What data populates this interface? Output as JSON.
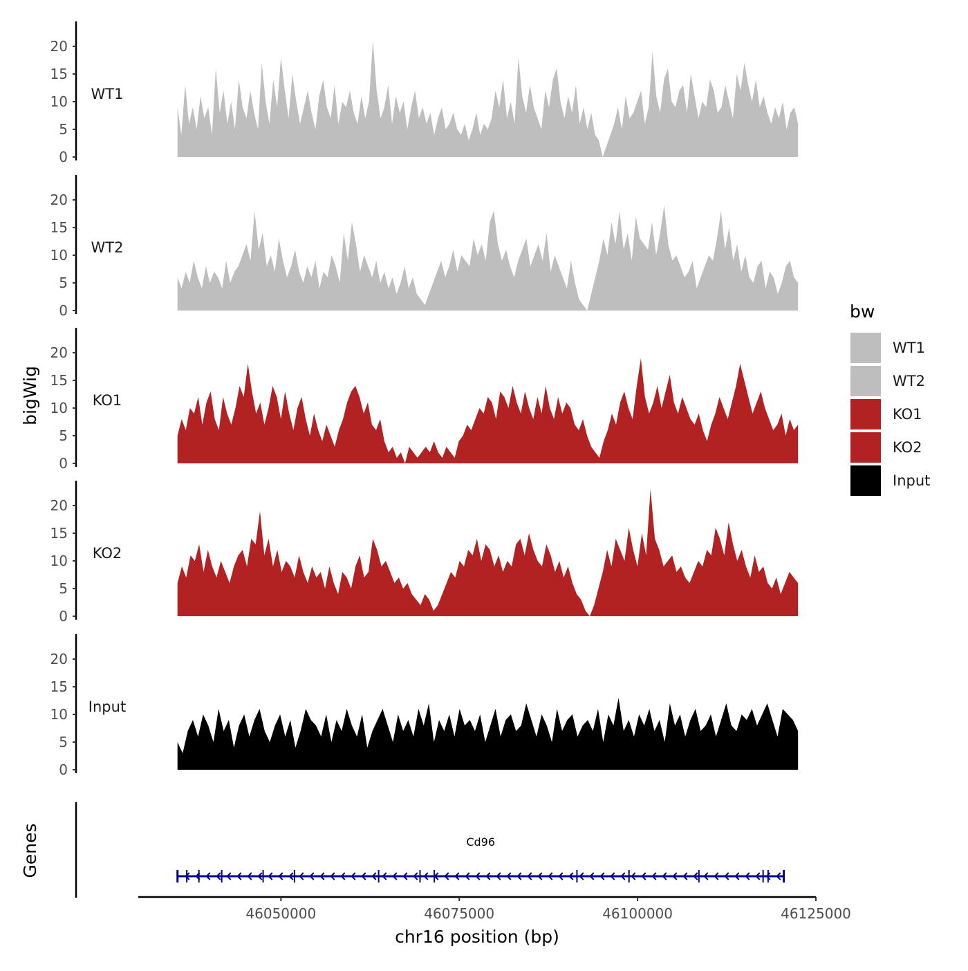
{
  "chart_data": {
    "type": "area",
    "title": "",
    "ylabel": "bigWig",
    "xlabel": "chr16 position (bp)",
    "genes_label": "Genes",
    "ylim": [
      0,
      24
    ],
    "xlim": [
      46030000,
      46125000
    ],
    "x_range": [
      46035500,
      46122500
    ],
    "y_ticks": [
      "0",
      "5",
      "10",
      "15",
      "20"
    ],
    "x_ticks": [
      {
        "value": 46050000,
        "label": "46050000"
      },
      {
        "value": 46075000,
        "label": "46075000"
      },
      {
        "value": 46100000,
        "label": "46100000"
      },
      {
        "value": 46125000,
        "label": "46125000"
      }
    ],
    "legend": {
      "title": "bw",
      "entries": [
        {
          "label": "WT1",
          "color": "#bebebe"
        },
        {
          "label": "WT2",
          "color": "#bebebe"
        },
        {
          "label": "KO1",
          "color": "#b22222"
        },
        {
          "label": "KO2",
          "color": "#b22222"
        },
        {
          "label": "Input",
          "color": "#000000"
        }
      ]
    },
    "series": [
      {
        "name": "WT1",
        "color": "#bebebe",
        "values": [
          9,
          4,
          13,
          6,
          9,
          5,
          11,
          7,
          9,
          4,
          16,
          8,
          12,
          6,
          10,
          5,
          14,
          9,
          7,
          12,
          8,
          5,
          17,
          10,
          6,
          14,
          9,
          18,
          12,
          7,
          15,
          10,
          6,
          9,
          12,
          8,
          5,
          11,
          14,
          9,
          7,
          13,
          6,
          10,
          9,
          12,
          8,
          6,
          11,
          7,
          10,
          21,
          12,
          7,
          9,
          13,
          6,
          11,
          8,
          10,
          5,
          9,
          12,
          7,
          9,
          6,
          8,
          4,
          7,
          9,
          5,
          6,
          8,
          5,
          4,
          6,
          3,
          5,
          8,
          4,
          6,
          5,
          7,
          12,
          9,
          14,
          7,
          10,
          6,
          18,
          11,
          8,
          13,
          9,
          7,
          5,
          12,
          9,
          14,
          16,
          10,
          7,
          11,
          8,
          13,
          6,
          9,
          5,
          8,
          4,
          3,
          0,
          2,
          4,
          6,
          9,
          5,
          11,
          7,
          8,
          10,
          12,
          6,
          9,
          19,
          11,
          8,
          14,
          16,
          10,
          9,
          12,
          13,
          8,
          15,
          11,
          7,
          10,
          9,
          14,
          12,
          8,
          9,
          13,
          10,
          7,
          15,
          12,
          17,
          13,
          10,
          14,
          9,
          11,
          8,
          6,
          9,
          7,
          10,
          5,
          8,
          9,
          6
        ]
      },
      {
        "name": "WT2",
        "color": "#bebebe",
        "values": [
          6,
          4,
          7,
          5,
          9,
          6,
          4,
          8,
          5,
          7,
          6,
          4,
          9,
          5,
          7,
          8,
          10,
          12,
          9,
          18,
          11,
          14,
          8,
          10,
          7,
          13,
          9,
          6,
          8,
          11,
          7,
          5,
          8,
          6,
          9,
          4,
          7,
          6,
          10,
          8,
          5,
          14,
          9,
          16,
          12,
          7,
          10,
          8,
          6,
          9,
          5,
          7,
          4,
          6,
          3,
          5,
          8,
          4,
          6,
          3,
          2,
          1,
          3,
          5,
          7,
          9,
          6,
          8,
          11,
          7,
          10,
          9,
          8,
          13,
          10,
          12,
          9,
          16,
          18,
          12,
          9,
          11,
          8,
          6,
          9,
          11,
          13,
          8,
          10,
          12,
          9,
          14,
          7,
          10,
          8,
          6,
          4,
          9,
          5,
          2,
          1,
          0,
          3,
          6,
          9,
          13,
          10,
          16,
          12,
          18,
          11,
          14,
          9,
          17,
          13,
          12,
          11,
          16,
          10,
          14,
          19,
          12,
          9,
          10,
          8,
          6,
          7,
          9,
          4,
          6,
          8,
          10,
          9,
          13,
          18,
          11,
          15,
          9,
          12,
          7,
          10,
          6,
          5,
          8,
          9,
          4,
          7,
          6,
          3,
          5,
          8,
          9,
          6,
          5
        ]
      },
      {
        "name": "KO1",
        "color": "#b22222",
        "values": [
          5,
          8,
          6,
          10,
          9,
          12,
          7,
          11,
          13,
          8,
          6,
          12,
          9,
          7,
          10,
          14,
          12,
          18,
          13,
          9,
          11,
          7,
          10,
          14,
          12,
          8,
          13,
          9,
          6,
          10,
          12,
          8,
          5,
          9,
          6,
          4,
          7,
          5,
          3,
          6,
          8,
          11,
          13,
          14,
          12,
          9,
          11,
          7,
          6,
          8,
          4,
          2,
          3,
          1,
          2,
          0,
          3,
          2,
          1,
          2,
          3,
          2,
          4,
          2,
          1,
          3,
          2,
          1,
          4,
          5,
          7,
          6,
          8,
          10,
          9,
          12,
          11,
          8,
          13,
          12,
          10,
          14,
          11,
          9,
          13,
          10,
          8,
          12,
          9,
          14,
          10,
          8,
          12,
          9,
          11,
          10,
          7,
          6,
          8,
          5,
          3,
          2,
          1,
          4,
          6,
          9,
          7,
          11,
          13,
          10,
          8,
          14,
          19,
          12,
          9,
          11,
          14,
          10,
          13,
          16,
          11,
          9,
          12,
          10,
          8,
          7,
          9,
          6,
          4,
          7,
          9,
          12,
          10,
          8,
          11,
          14,
          18,
          15,
          12,
          9,
          11,
          13,
          10,
          8,
          6,
          7,
          9,
          5,
          8,
          6,
          7
        ]
      },
      {
        "name": "KO2",
        "color": "#b22222",
        "values": [
          6,
          9,
          7,
          11,
          10,
          13,
          8,
          12,
          9,
          7,
          10,
          8,
          6,
          9,
          11,
          12,
          9,
          14,
          13,
          19,
          11,
          14,
          9,
          12,
          8,
          10,
          9,
          7,
          11,
          8,
          6,
          9,
          7,
          8,
          5,
          9,
          6,
          4,
          8,
          7,
          5,
          9,
          11,
          7,
          8,
          14,
          12,
          9,
          10,
          8,
          6,
          7,
          5,
          6,
          4,
          3,
          2,
          4,
          3,
          1,
          2,
          4,
          6,
          8,
          7,
          10,
          9,
          12,
          11,
          14,
          10,
          13,
          12,
          9,
          11,
          8,
          10,
          9,
          13,
          14,
          11,
          15,
          12,
          10,
          9,
          13,
          11,
          8,
          10,
          7,
          9,
          6,
          4,
          3,
          1,
          0,
          2,
          5,
          8,
          12,
          9,
          14,
          12,
          10,
          16,
          12,
          9,
          15,
          11,
          23,
          14,
          12,
          9,
          10,
          11,
          8,
          9,
          7,
          6,
          8,
          10,
          9,
          12,
          11,
          16,
          14,
          11,
          17,
          13,
          10,
          12,
          9,
          7,
          11,
          8,
          9,
          6,
          5,
          7,
          4,
          6,
          8,
          7,
          6
        ]
      },
      {
        "name": "Input",
        "color": "#000000",
        "values": [
          5,
          3,
          7,
          9,
          6,
          10,
          8,
          5,
          11,
          7,
          9,
          4,
          8,
          10,
          6,
          9,
          11,
          7,
          5,
          8,
          10,
          6,
          9,
          4,
          7,
          11,
          9,
          8,
          6,
          10,
          5,
          9,
          7,
          11,
          8,
          6,
          10,
          4,
          7,
          9,
          11,
          8,
          5,
          10,
          7,
          9,
          6,
          11,
          8,
          12,
          5,
          9,
          7,
          10,
          6,
          11,
          8,
          9,
          7,
          10,
          5,
          8,
          11,
          6,
          9,
          10,
          7,
          8,
          12,
          9,
          6,
          10,
          8,
          5,
          11,
          7,
          9,
          10,
          6,
          8,
          9,
          7,
          11,
          5,
          10,
          8,
          13,
          7,
          9,
          6,
          10,
          8,
          11,
          7,
          9,
          5,
          12,
          8,
          10,
          6,
          9,
          11,
          7,
          8,
          10,
          6,
          9,
          12,
          8,
          7,
          10,
          9,
          11,
          8,
          10,
          12,
          9,
          6,
          11,
          10,
          9,
          7
        ]
      }
    ],
    "gene": {
      "name": "Cd96",
      "start": 46035500,
      "end": 46120500,
      "strand": "-",
      "color": "#00008b",
      "exons": [
        46036800,
        46038500,
        46041700,
        46047500,
        46051900,
        46063700,
        46069500,
        46071500,
        46091500,
        46098800,
        46108600,
        46117600,
        46118300
      ]
    }
  }
}
